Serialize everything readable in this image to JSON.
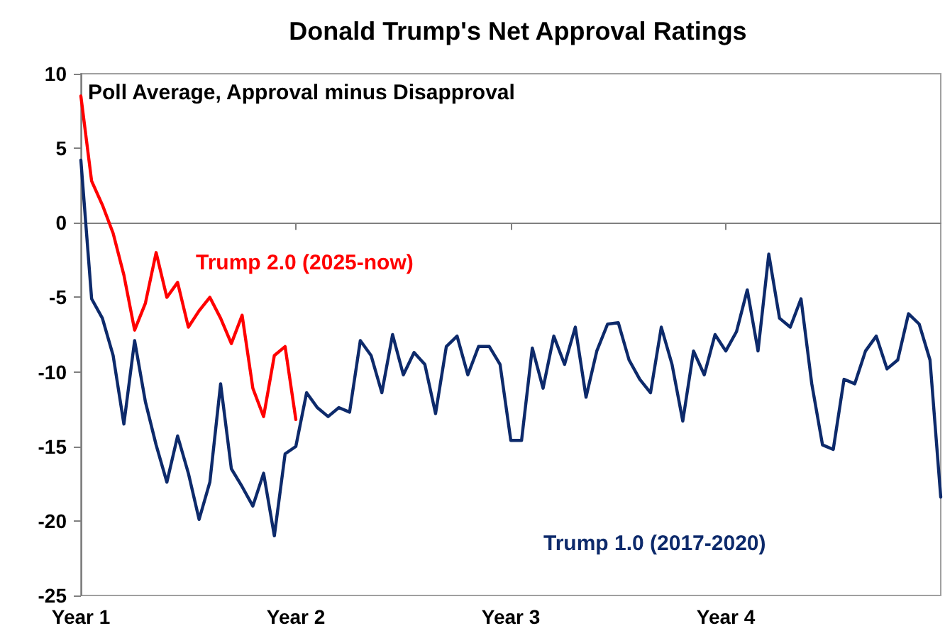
{
  "chart_data": {
    "type": "line",
    "title": "Donald Trump's Net Approval Ratings",
    "annotations": [
      "Poll Average, Approval minus Disapproval"
    ],
    "categories": [
      "Year 1",
      null,
      null,
      null,
      null,
      null,
      null,
      null,
      null,
      null,
      null,
      null,
      null,
      null,
      null,
      null,
      null,
      null,
      null,
      null,
      "Year 2",
      null,
      null,
      null,
      null,
      null,
      null,
      null,
      null,
      null,
      null,
      null,
      null,
      null,
      null,
      null,
      null,
      null,
      null,
      null,
      "Year 3",
      null,
      null,
      null,
      null,
      null,
      null,
      null,
      null,
      null,
      null,
      null,
      null,
      null,
      null,
      null,
      null,
      null,
      null,
      null,
      "Year 4",
      null,
      null,
      null,
      null,
      null,
      null,
      null,
      null,
      null,
      null,
      null,
      null,
      null,
      null,
      null,
      null,
      null,
      null,
      null,
      null
    ],
    "ylim": [
      -25,
      10
    ],
    "yticks": [
      -25,
      -20,
      -15,
      -10,
      -5,
      0,
      5,
      10
    ],
    "line_style": "solid",
    "series": [
      {
        "name": "Trump 1.0 (2017-2020)",
        "color": "#0d2a6b",
        "values": [
          4.2,
          -5.1,
          -6.4,
          -8.9,
          -13.5,
          -7.9,
          -12.0,
          -14.9,
          -17.4,
          -14.3,
          -16.8,
          -19.9,
          -17.4,
          -10.8,
          -16.5,
          -17.7,
          -19.0,
          -16.8,
          -21.0,
          -15.5,
          -15.0,
          -11.4,
          -12.4,
          -13.0,
          -12.4,
          -12.7,
          -7.9,
          -8.9,
          -11.4,
          -7.5,
          -10.2,
          -8.7,
          -9.5,
          -12.8,
          -8.3,
          -7.6,
          -10.2,
          -8.3,
          -8.3,
          -9.5,
          -14.6,
          -14.6,
          -8.4,
          -11.1,
          -7.6,
          -9.5,
          -7.0,
          -11.7,
          -8.6,
          -6.8,
          -6.7,
          -9.2,
          -10.5,
          -11.4,
          -7.0,
          -9.5,
          -13.3,
          -8.6,
          -10.2,
          -7.5,
          -8.6,
          -7.3,
          -4.5,
          -8.6,
          -2.1,
          -6.4,
          -7.0,
          -5.1,
          -10.8,
          -14.9,
          -15.2,
          -10.5,
          -10.8,
          -8.6,
          -7.6,
          -9.8,
          -9.2,
          -6.1,
          -6.8,
          -9.2,
          -18.4
        ]
      },
      {
        "name": "Trump 2.0 (2025-now)",
        "color": "#ff0000",
        "values": [
          8.5,
          2.8,
          1.2,
          -0.7,
          -3.5,
          -7.2,
          -5.4,
          -2.0,
          -5.0,
          -4.0,
          -7.0,
          -5.9,
          -5.0,
          -6.4,
          -8.1,
          -6.2,
          -11.1,
          -13.0,
          -8.9,
          -8.3,
          -13.2,
          null,
          null,
          null,
          null,
          null,
          null,
          null,
          null,
          null,
          null,
          null,
          null,
          null,
          null,
          null,
          null,
          null,
          null,
          null,
          null,
          null,
          null,
          null,
          null,
          null,
          null,
          null,
          null,
          null,
          null,
          null,
          null,
          null,
          null,
          null,
          null,
          null,
          null,
          null,
          null,
          null,
          null,
          null,
          null,
          null,
          null,
          null,
          null,
          null,
          null,
          null,
          null,
          null,
          null,
          null,
          null,
          null,
          null,
          null,
          null
        ]
      }
    ]
  }
}
